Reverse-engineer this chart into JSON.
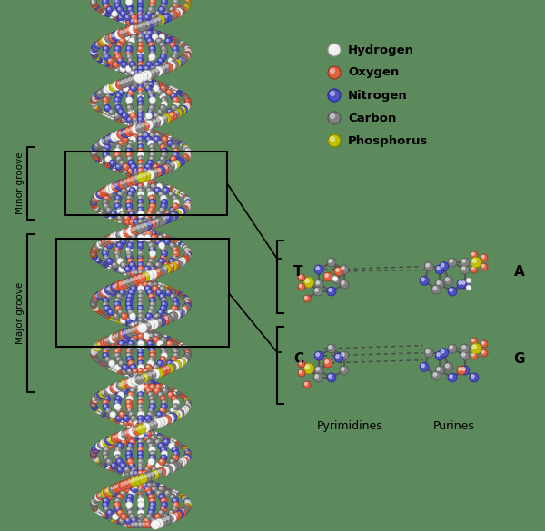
{
  "background_color": "#5c8a5c",
  "legend_items": [
    {
      "label": "Hydrogen",
      "color": "#f0f0f0",
      "edge": "#999999"
    },
    {
      "label": "Oxygen",
      "color": "#e06040",
      "edge": "#903020"
    },
    {
      "label": "Nitrogen",
      "color": "#5050c0",
      "edge": "#2020a0"
    },
    {
      "label": "Carbon",
      "color": "#808080",
      "edge": "#505050"
    },
    {
      "label": "Phosphorus",
      "color": "#c0c000",
      "edge": "#808000"
    }
  ],
  "minor_groove_label": "Minor groove",
  "major_groove_label": "Major groove",
  "base_labels_left": [
    "T",
    "C"
  ],
  "base_labels_right": [
    "A",
    "G"
  ],
  "base_group_labels": [
    "Pyrimidines",
    "Purines"
  ],
  "fig_width": 6.0,
  "fig_height": 5.85,
  "dpi": 100
}
